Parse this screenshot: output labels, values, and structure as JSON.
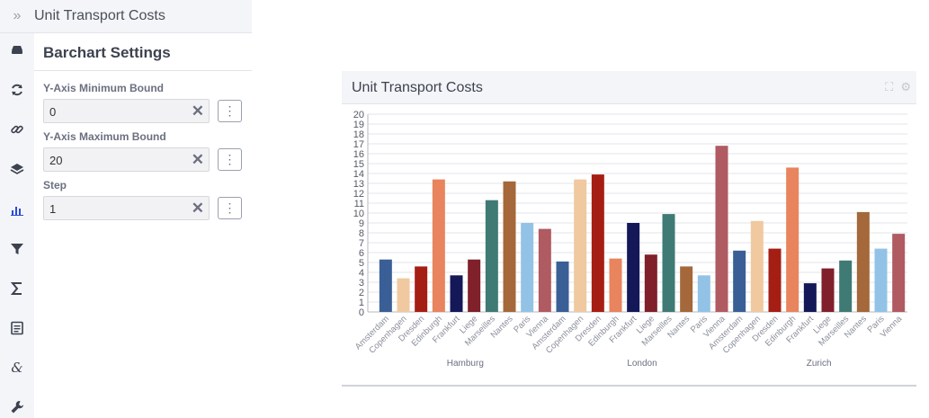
{
  "app": {
    "title": "Unit Transport Costs",
    "collapse_icon": "double-chevron-right-icon"
  },
  "sidebar_icons": [
    "drive-icon",
    "refresh-icon",
    "link-icon",
    "layers-icon",
    "bar-chart-icon",
    "filter-icon",
    "sigma-icon",
    "list-icon",
    "ampersand-icon",
    "wrench-icon"
  ],
  "settings": {
    "title": "Barchart Settings",
    "fields": [
      {
        "label": "Y-Axis Minimum Bound",
        "value": "0"
      },
      {
        "label": "Y-Axis Maximum Bound",
        "value": "20"
      },
      {
        "label": "Step",
        "value": "1"
      }
    ]
  },
  "chart_card": {
    "title": "Unit Transport Costs",
    "icons": [
      "expand-icon",
      "gear-icon"
    ]
  },
  "chart_data": {
    "type": "bar",
    "ylim": [
      0,
      20
    ],
    "ystep": 1,
    "grid": true,
    "groups": [
      {
        "name": "Hamburg",
        "items": [
          {
            "c": "Amsterdam",
            "v": 5.3,
            "color": "#3a5f96"
          },
          {
            "c": "Copenhagen",
            "v": 3.4,
            "color": "#f0c9a0"
          },
          {
            "c": "Dresden",
            "v": 4.6,
            "color": "#a51e14"
          },
          {
            "c": "Edinburgh",
            "v": 13.4,
            "color": "#e8845e"
          },
          {
            "c": "Frankfurt",
            "v": 3.7,
            "color": "#141858"
          },
          {
            "c": "Liege",
            "v": 5.3,
            "color": "#80202a"
          },
          {
            "c": "Marseilles",
            "v": 11.3,
            "color": "#3f7a74"
          },
          {
            "c": "Nantes",
            "v": 13.2,
            "color": "#a4683a"
          },
          {
            "c": "Paris",
            "v": 9.0,
            "color": "#92c3e6"
          },
          {
            "c": "Vienna",
            "v": 8.4,
            "color": "#b05a62"
          }
        ]
      },
      {
        "name": "London",
        "items": [
          {
            "c": "Amsterdam",
            "v": 5.1,
            "color": "#3a5f96"
          },
          {
            "c": "Copenhagen",
            "v": 13.4,
            "color": "#f0c9a0"
          },
          {
            "c": "Dresden",
            "v": 13.9,
            "color": "#a51e14"
          },
          {
            "c": "Edinburgh",
            "v": 5.4,
            "color": "#e8845e"
          },
          {
            "c": "Frankfurt",
            "v": 9.0,
            "color": "#141858"
          },
          {
            "c": "Liege",
            "v": 5.8,
            "color": "#80202a"
          },
          {
            "c": "Marseilles",
            "v": 9.9,
            "color": "#3f7a74"
          },
          {
            "c": "Nantes",
            "v": 4.6,
            "color": "#a4683a"
          },
          {
            "c": "Paris",
            "v": 3.7,
            "color": "#92c3e6"
          },
          {
            "c": "Vienna",
            "v": 16.8,
            "color": "#b05a62"
          }
        ]
      },
      {
        "name": "Zurich",
        "items": [
          {
            "c": "Amsterdam",
            "v": 6.2,
            "color": "#3a5f96"
          },
          {
            "c": "Copenhagen",
            "v": 9.2,
            "color": "#f0c9a0"
          },
          {
            "c": "Dresden",
            "v": 6.4,
            "color": "#a51e14"
          },
          {
            "c": "Edinburgh",
            "v": 14.6,
            "color": "#e8845e"
          },
          {
            "c": "Frankfurt",
            "v": 2.9,
            "color": "#141858"
          },
          {
            "c": "Liege",
            "v": 4.4,
            "color": "#80202a"
          },
          {
            "c": "Marseilles",
            "v": 5.2,
            "color": "#3f7a74"
          },
          {
            "c": "Nantes",
            "v": 10.1,
            "color": "#a4683a"
          },
          {
            "c": "Paris",
            "v": 6.4,
            "color": "#92c3e6"
          },
          {
            "c": "Vienna",
            "v": 7.9,
            "color": "#b05a62"
          }
        ]
      }
    ]
  }
}
